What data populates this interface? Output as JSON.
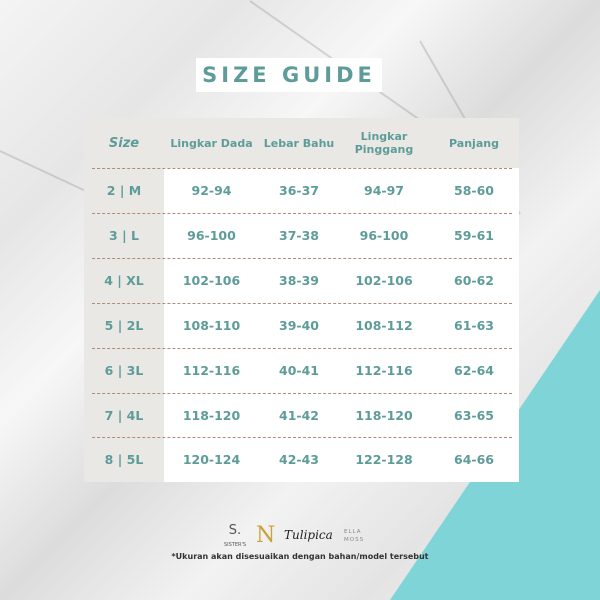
{
  "title": "SIZE GUIDE",
  "colors": {
    "accent": "#5e9c9a",
    "teal": "#7fd4d8",
    "header_bg": "#e9e8e4",
    "divider": "#b58a75"
  },
  "table": {
    "headers": [
      "Size",
      "Lingkar Dada",
      "Lebar Bahu",
      "Lingkar Pinggang",
      "Panjang"
    ],
    "rows": [
      [
        "2 | M",
        "92-94",
        "36-37",
        "94-97",
        "58-60"
      ],
      [
        "3 | L",
        "96-100",
        "37-38",
        "96-100",
        "59-61"
      ],
      [
        "4 | XL",
        "102-106",
        "38-39",
        "102-106",
        "60-62"
      ],
      [
        "5 | 2L",
        "108-110",
        "39-40",
        "108-112",
        "61-63"
      ],
      [
        "6 | 3L",
        "112-116",
        "40-41",
        "112-116",
        "62-64"
      ],
      [
        "7 | 4L",
        "118-120",
        "41-42",
        "118-120",
        "63-65"
      ],
      [
        "8 | 5L",
        "120-124",
        "42-43",
        "122-128",
        "64-66"
      ]
    ]
  },
  "brands": [
    "SISTER'S",
    "Tulipica",
    "ELLA MOSS"
  ],
  "note": "*Ukuran akan disesuaikan dengan bahan/model tersebut"
}
